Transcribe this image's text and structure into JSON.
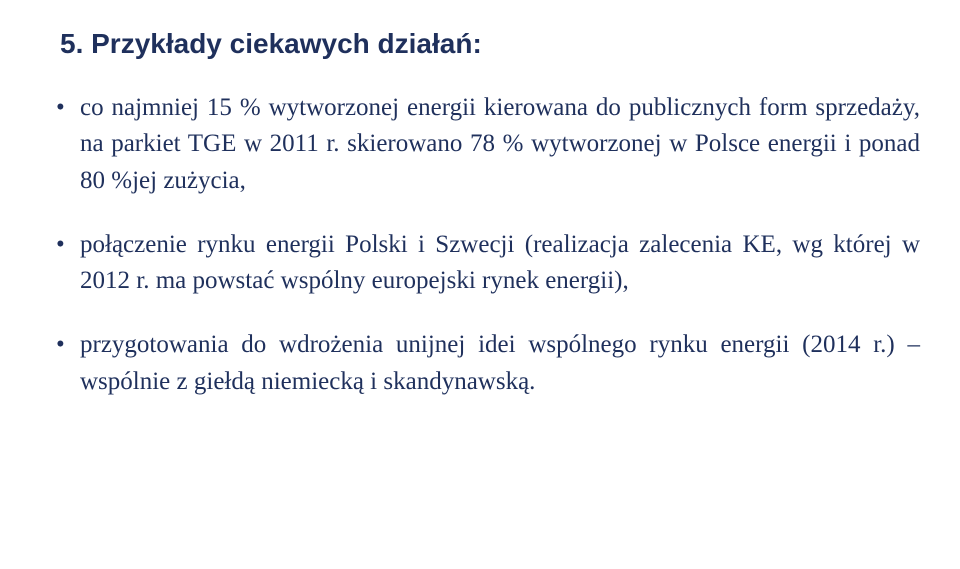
{
  "title": "5. Przykłady ciekawych działań:",
  "bullets": [
    "co najmniej 15 % wytworzonej energii kierowana do publicznych form sprzedaży, na parkiet TGE w 2011 r. skierowano 78 % wytworzonej w Polsce energii  i ponad 80 %jej zużycia,",
    "połączenie rynku energii Polski i Szwecji (realizacja zalecenia KE, wg której w 2012 r. ma  powstać wspólny europejski rynek energii),",
    "przygotowania do wdrożenia unijnej idei wspólnego rynku energii (2014 r.) – wspólnie z giełdą niemiecką i skandynawską."
  ],
  "colors": {
    "text": "#1f305c",
    "background": "#ffffff"
  },
  "typography": {
    "title_fontsize": 28,
    "body_fontsize": 25,
    "title_family": "Verdana",
    "body_family": "Georgia"
  }
}
